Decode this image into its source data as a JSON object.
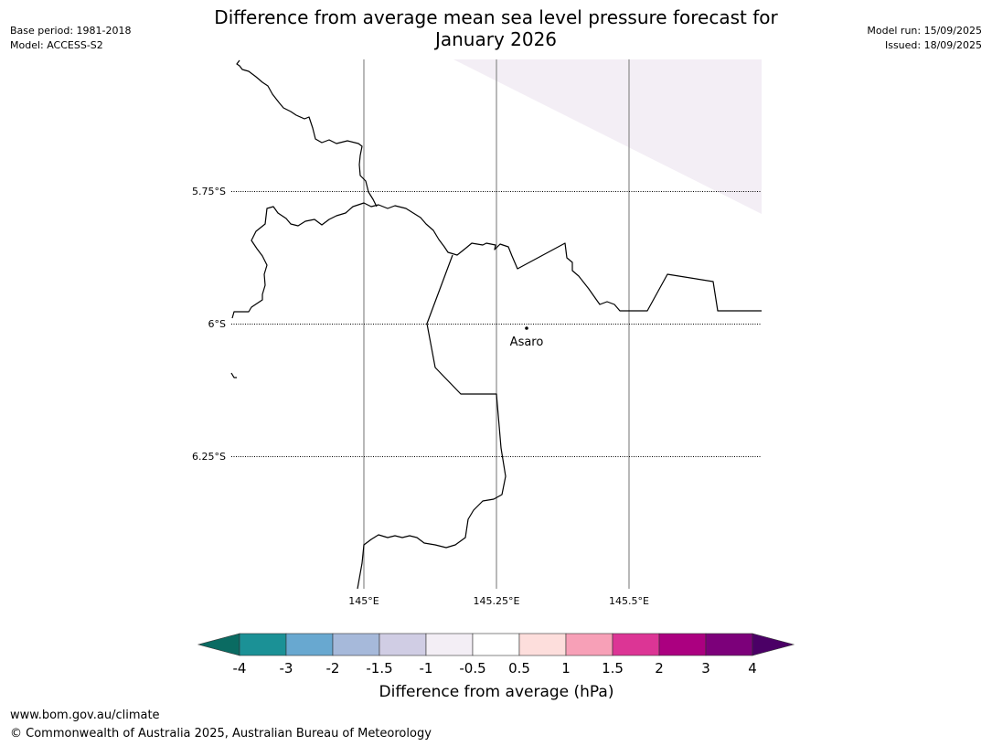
{
  "header": {
    "title_line1": "Difference from average mean sea level pressure forecast for",
    "title_line2": "January 2026",
    "base_period": "Base period: 1981-2018",
    "model": "Model: ACCESS-S2",
    "model_run": "Model run: 15/09/2025",
    "issued": "Issued: 18/09/2025"
  },
  "map": {
    "lat_labels": [
      "5.75°S",
      "6°S",
      "6.25°S"
    ],
    "lon_labels": [
      "145°E",
      "145.25°E",
      "145.5°E"
    ],
    "place": "Asaro",
    "shading_color": "#f3eef5"
  },
  "legend": {
    "title": "Difference from average (hPa)",
    "ticks": [
      "-4",
      "-3",
      "-2",
      "-1.5",
      "-1",
      "-0.5",
      "0.5",
      "1",
      "1.5",
      "2",
      "3",
      "4"
    ],
    "low_extend_color": "#0a6b62",
    "high_extend_color": "#4b0066",
    "colors": [
      "#1b9196",
      "#68a8d0",
      "#a6b9da",
      "#d0cde4",
      "#f3eef5",
      "#ffffff",
      "#fddedc",
      "#f7a0b7",
      "#dc3595",
      "#ab0080",
      "#7c007a"
    ]
  },
  "footer": {
    "website": "www.bom.gov.au/climate",
    "copyright": "© Commonwealth of Australia 2025, Australian Bureau of Meteorology"
  }
}
